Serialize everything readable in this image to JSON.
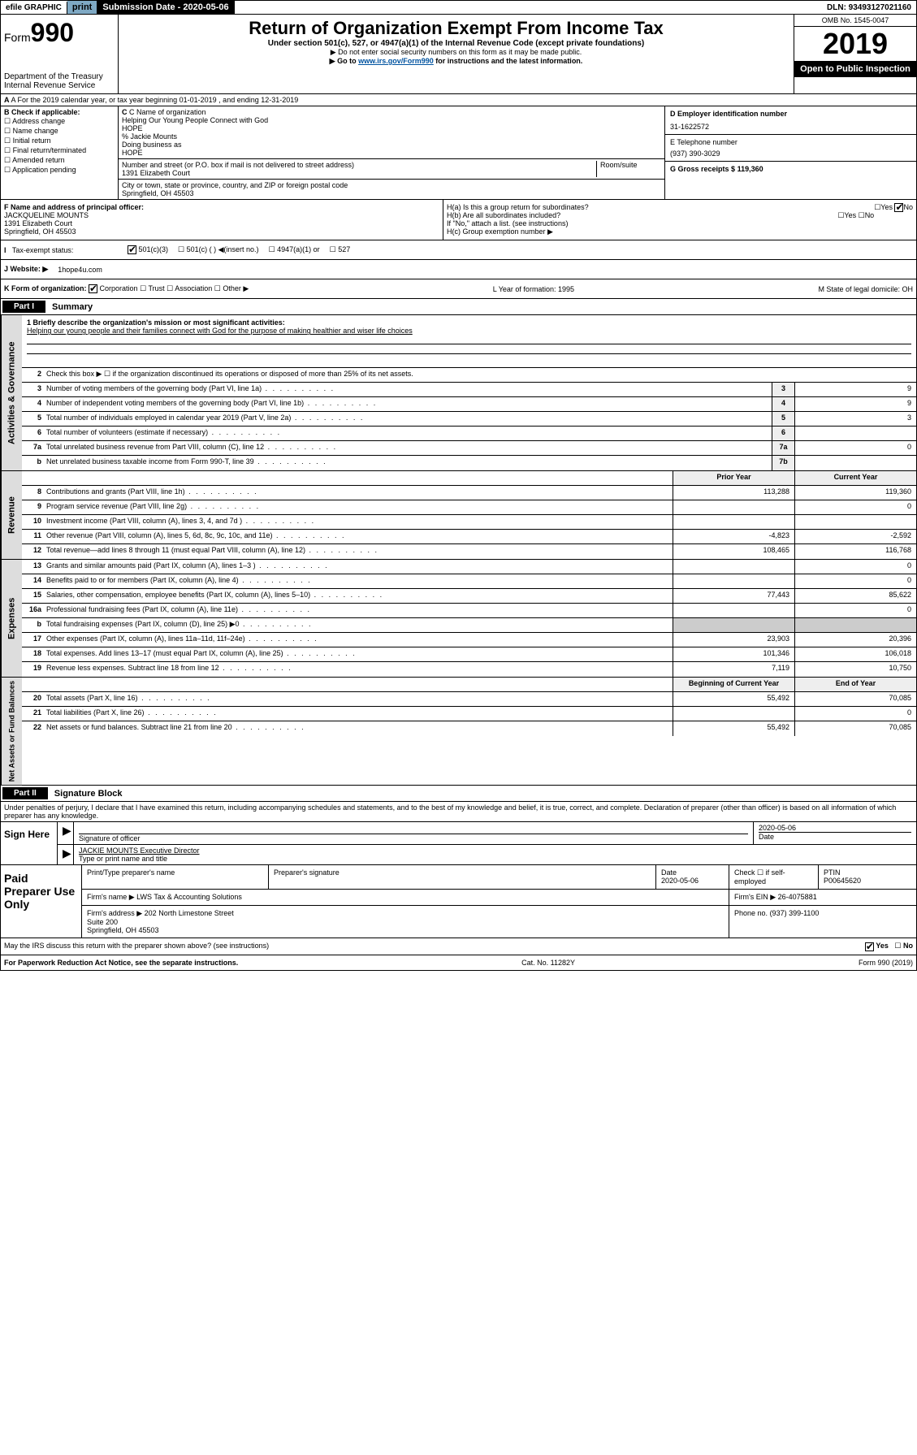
{
  "top": {
    "efile": "efile GRAPHIC",
    "print": "print",
    "sub_label": "Submission Date - 2020-05-06",
    "dln": "DLN: 93493127021160"
  },
  "header": {
    "form": "Form",
    "num": "990",
    "dept": "Department of the Treasury",
    "irs": "Internal Revenue Service",
    "title": "Return of Organization Exempt From Income Tax",
    "sub": "Under section 501(c), 527, or 4947(a)(1) of the Internal Revenue Code (except private foundations)",
    "note1": "▶ Do not enter social security numbers on this form as it may be made public.",
    "note2a": "▶ Go to ",
    "note2link": "www.irs.gov/Form990",
    "note2b": " for instructions and the latest information.",
    "omb": "OMB No. 1545-0047",
    "year": "2019",
    "open": "Open to Public Inspection"
  },
  "rowA": "A For the 2019 calendar year, or tax year beginning 01-01-2019     , and ending 12-31-2019",
  "B": {
    "hdr": "B Check if applicable:",
    "opts": [
      "Address change",
      "Name change",
      "Initial return",
      "Final return/terminated",
      "Amended return",
      "Application pending"
    ]
  },
  "C": {
    "name_lbl": "C Name of organization",
    "name1": "Helping Our Young People Connect with God",
    "name2": "HOPE",
    "care": "% Jackie Mounts",
    "dba_lbl": "Doing business as",
    "dba": "HOPE",
    "addr_lbl": "Number and street (or P.O. box if mail is not delivered to street address)",
    "room_lbl": "Room/suite",
    "addr": "1391 Elizabeth Court",
    "city_lbl": "City or town, state or province, country, and ZIP or foreign postal code",
    "city": "Springfield, OH  45503"
  },
  "D": {
    "lbl": "D Employer identification number",
    "val": "31-1622572"
  },
  "E": {
    "lbl": "E Telephone number",
    "val": "(937) 390-3029"
  },
  "G": {
    "lbl": "G Gross receipts $",
    "val": "119,360"
  },
  "F": {
    "lbl": "F  Name and address of principal officer:",
    "name": "JACKQUELINE MOUNTS",
    "addr": "1391 Elizabeth Court",
    "city": "Springfield, OH  45503"
  },
  "H": {
    "a": "H(a)  Is this a group return for subordinates?",
    "b": "H(b)  Are all subordinates included?",
    "bnote": "If \"No,\" attach a list. (see instructions)",
    "c": "H(c)  Group exemption number ▶",
    "yes": "Yes",
    "no": "No"
  },
  "status": {
    "lbl": "Tax-exempt status:",
    "o1": "501(c)(3)",
    "o2": "501(c) (  ) ◀(insert no.)",
    "o3": "4947(a)(1) or",
    "o4": "527"
  },
  "J": {
    "lbl": "J    Website: ▶",
    "val": "1hope4u.com"
  },
  "K": {
    "lbl": "K Form of organization:",
    "corp": "Corporation",
    "trust": "Trust",
    "assoc": "Association",
    "other": "Other ▶",
    "L": "L Year of formation: 1995",
    "M": "M State of legal domicile: OH"
  },
  "part1": {
    "hdr": "Part I",
    "title": "Summary"
  },
  "summary": {
    "q1": "1   Briefly describe the organization's mission or most significant activities:",
    "mission": "Helping our young people and their families connect with God for the purpose of making healthier and wiser life choices",
    "q2": "Check this box ▶ ☐  if the organization discontinued its operations or disposed of more than 25% of its net assets.",
    "lines": [
      {
        "n": "3",
        "t": "Number of voting members of the governing body (Part VI, line 1a)",
        "box": "3",
        "v": "9"
      },
      {
        "n": "4",
        "t": "Number of independent voting members of the governing body (Part VI, line 1b)",
        "box": "4",
        "v": "9"
      },
      {
        "n": "5",
        "t": "Total number of individuals employed in calendar year 2019 (Part V, line 2a)",
        "box": "5",
        "v": "3"
      },
      {
        "n": "6",
        "t": "Total number of volunteers (estimate if necessary)",
        "box": "6",
        "v": ""
      },
      {
        "n": "7a",
        "t": "Total unrelated business revenue from Part VIII, column (C), line 12",
        "box": "7a",
        "v": "0"
      },
      {
        "n": "b",
        "t": "Net unrelated business taxable income from Form 990-T, line 39",
        "box": "7b",
        "v": ""
      }
    ],
    "col_prior": "Prior Year",
    "col_current": "Current Year",
    "rev": [
      {
        "n": "8",
        "t": "Contributions and grants (Part VIII, line 1h)",
        "p": "113,288",
        "c": "119,360"
      },
      {
        "n": "9",
        "t": "Program service revenue (Part VIII, line 2g)",
        "p": "",
        "c": "0"
      },
      {
        "n": "10",
        "t": "Investment income (Part VIII, column (A), lines 3, 4, and 7d )",
        "p": "",
        "c": ""
      },
      {
        "n": "11",
        "t": "Other revenue (Part VIII, column (A), lines 5, 6d, 8c, 9c, 10c, and 11e)",
        "p": "-4,823",
        "c": "-2,592"
      },
      {
        "n": "12",
        "t": "Total revenue—add lines 8 through 11 (must equal Part VIII, column (A), line 12)",
        "p": "108,465",
        "c": "116,768"
      }
    ],
    "exp": [
      {
        "n": "13",
        "t": "Grants and similar amounts paid (Part IX, column (A), lines 1–3 )",
        "p": "",
        "c": "0"
      },
      {
        "n": "14",
        "t": "Benefits paid to or for members (Part IX, column (A), line 4)",
        "p": "",
        "c": "0"
      },
      {
        "n": "15",
        "t": "Salaries, other compensation, employee benefits (Part IX, column (A), lines 5–10)",
        "p": "77,443",
        "c": "85,622"
      },
      {
        "n": "16a",
        "t": "Professional fundraising fees (Part IX, column (A), line 11e)",
        "p": "",
        "c": "0"
      },
      {
        "n": "b",
        "t": "Total fundraising expenses (Part IX, column (D), line 25) ▶0",
        "p": "",
        "c": "",
        "noval": true
      },
      {
        "n": "17",
        "t": "Other expenses (Part IX, column (A), lines 11a–11d, 11f–24e)",
        "p": "23,903",
        "c": "20,396"
      },
      {
        "n": "18",
        "t": "Total expenses. Add lines 13–17 (must equal Part IX, column (A), line 25)",
        "p": "101,346",
        "c": "106,018"
      },
      {
        "n": "19",
        "t": "Revenue less expenses. Subtract line 18 from line 12",
        "p": "7,119",
        "c": "10,750"
      }
    ],
    "col_begin": "Beginning of Current Year",
    "col_end": "End of Year",
    "bal": [
      {
        "n": "20",
        "t": "Total assets (Part X, line 16)",
        "p": "55,492",
        "c": "70,085"
      },
      {
        "n": "21",
        "t": "Total liabilities (Part X, line 26)",
        "p": "",
        "c": "0"
      },
      {
        "n": "22",
        "t": "Net assets or fund balances. Subtract line 21 from line 20",
        "p": "55,492",
        "c": "70,085"
      }
    ]
  },
  "sides": {
    "gov": "Activities & Governance",
    "rev": "Revenue",
    "exp": "Expenses",
    "bal": "Net Assets or Fund Balances"
  },
  "part2": {
    "hdr": "Part II",
    "title": "Signature Block"
  },
  "penalty": "Under penalties of perjury, I declare that I have examined this return, including accompanying schedules and statements, and to the best of my knowledge and belief, it is true, correct, and complete. Declaration of preparer (other than officer) is based on all information of which preparer has any knowledge.",
  "sign": {
    "here": "Sign Here",
    "sig_lbl": "Signature of officer",
    "date": "2020-05-06",
    "date_lbl": "Date",
    "name": "JACKIE MOUNTS Executive Director",
    "name_lbl": "Type or print name and title"
  },
  "paid": {
    "hdr": "Paid Preparer Use Only",
    "h1": "Print/Type preparer's name",
    "h2": "Preparer's signature",
    "h3": "Date",
    "h3v": "2020-05-06",
    "h4": "Check ☐ if self-employed",
    "h5": "PTIN",
    "h5v": "P00645620",
    "firm_lbl": "Firm's name    ▶",
    "firm": "LWS Tax & Accounting Solutions",
    "ein_lbl": "Firm's EIN ▶",
    "ein": "26-4075881",
    "addr_lbl": "Firm's address ▶",
    "addr": "202 North Limestone Street\nSuite 200\nSpringfield, OH  45503",
    "phone_lbl": "Phone no.",
    "phone": "(937) 399-1100"
  },
  "irs_discuss": "May the IRS discuss this return with the preparer shown above? (see instructions)",
  "footer": {
    "left": "For Paperwork Reduction Act Notice, see the separate instructions.",
    "mid": "Cat. No. 11282Y",
    "right": "Form 990 (2019)"
  }
}
